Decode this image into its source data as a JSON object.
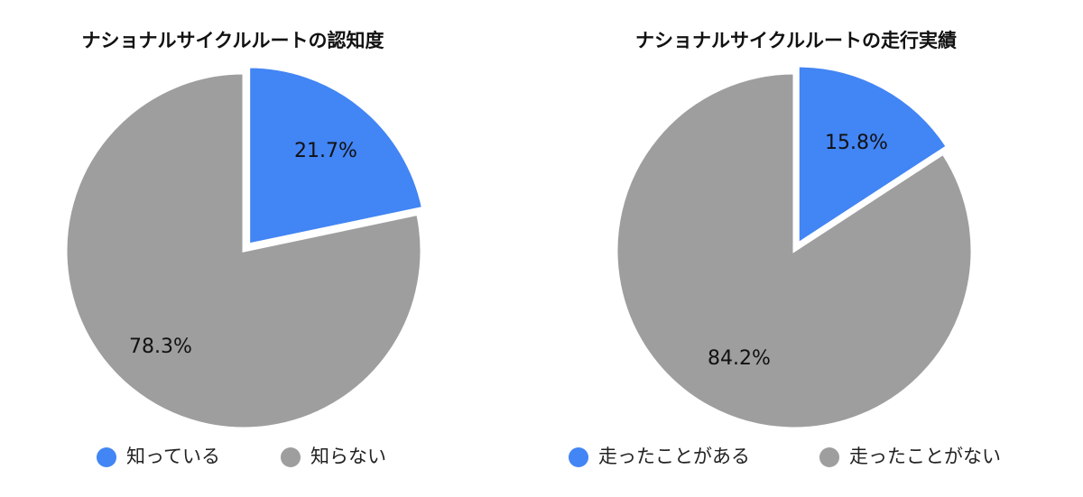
{
  "chart_data": [
    {
      "type": "pie",
      "title": "ナショナルサイクルルートの認知度",
      "slices": [
        {
          "label": "知っている",
          "value": 21.7,
          "value_label": "21.7%",
          "color": "#4285f4",
          "exploded": true
        },
        {
          "label": "知らない",
          "value": 78.3,
          "value_label": "78.3%",
          "color": "#9e9e9e",
          "exploded": false
        }
      ],
      "legend_position": "bottom"
    },
    {
      "type": "pie",
      "title": "ナショナルサイクルルートの走行実績",
      "slices": [
        {
          "label": "走ったことがある",
          "value": 15.8,
          "value_label": "15.8%",
          "color": "#4285f4",
          "exploded": true
        },
        {
          "label": "走ったことがない",
          "value": 84.2,
          "value_label": "84.2%",
          "color": "#9e9e9e",
          "exploded": false
        }
      ],
      "legend_position": "bottom"
    }
  ]
}
